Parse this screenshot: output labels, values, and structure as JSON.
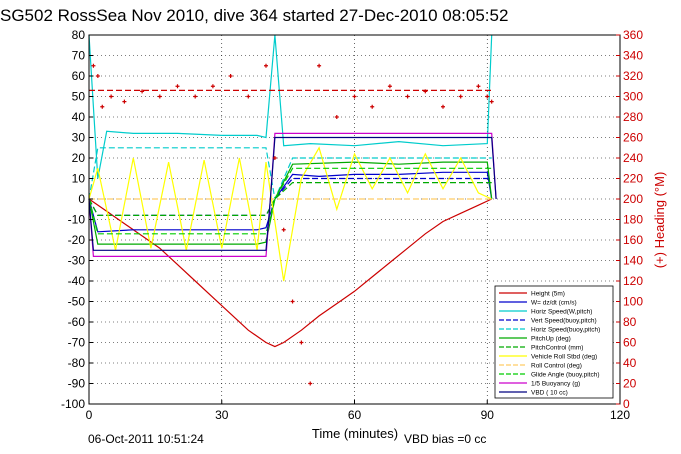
{
  "title": "SG502 RossSea Nov 2010, dive 364 started 27-Dec-2010 08:05:52",
  "footer": {
    "timestamp": "06-Oct-2011 10:51:24",
    "vbd_bias": "VBD bias =0 cc"
  },
  "chart_data": {
    "type": "line",
    "title": "SG502 RossSea Nov 2010, dive 364 started 27-Dec-2010 08:05:52",
    "xlabel": "Time (minutes)",
    "ylabel": "",
    "ylabel_right": "(+) Heading (°M)",
    "xlim": [
      0,
      120
    ],
    "ylim": [
      -100,
      80
    ],
    "ylim_right": [
      0,
      360
    ],
    "xticks": [
      0,
      30,
      60,
      90,
      120
    ],
    "yticks": [
      -100,
      -90,
      -80,
      -70,
      -60,
      -50,
      -40,
      -30,
      -20,
      -10,
      0,
      10,
      20,
      30,
      40,
      50,
      60,
      70,
      80
    ],
    "yticks_right": [
      0,
      20,
      40,
      60,
      80,
      100,
      120,
      140,
      160,
      180,
      200,
      220,
      240,
      260,
      280,
      300,
      320,
      340,
      360
    ],
    "grid": true,
    "legend_position": "bottom-right",
    "colors": {
      "accent_right_axis": "#cc0000"
    },
    "series": [
      {
        "name": "Height (5m)",
        "color": "#cc0000",
        "style": "solid",
        "x": [
          0,
          4,
          8,
          12,
          16,
          20,
          24,
          28,
          32,
          36,
          40,
          42,
          44,
          48,
          52,
          56,
          60,
          64,
          68,
          72,
          76,
          80,
          84,
          88,
          91
        ],
        "y": [
          0,
          -6,
          -12,
          -18,
          -24,
          -32,
          -40,
          -48,
          -56,
          -64,
          -70,
          -72,
          -70,
          -64,
          -57,
          -51,
          -45,
          -38,
          -31,
          -24,
          -17,
          -11,
          -7,
          -3,
          0
        ]
      },
      {
        "name": "W= dz/dt (cm/s)",
        "color": "#0000cc",
        "style": "solid",
        "x": [
          0,
          2,
          10,
          20,
          30,
          38,
          40,
          42,
          46,
          52,
          60,
          70,
          80,
          90,
          91
        ],
        "y": [
          0,
          -16,
          -15,
          -15,
          -15,
          -15,
          -14,
          0,
          12,
          11,
          12,
          12,
          13,
          13,
          0
        ]
      },
      {
        "name": "Horiz Speed(W,pitch)",
        "color": "#00cccc",
        "style": "solid",
        "x": [
          0,
          2,
          4,
          10,
          20,
          30,
          38,
          40,
          42,
          44,
          50,
          60,
          70,
          80,
          90,
          91
        ],
        "y": [
          80,
          10,
          33,
          32,
          32,
          31,
          31,
          30,
          80,
          26,
          27,
          26,
          28,
          26,
          27,
          80
        ]
      },
      {
        "name": "Vert Speed(buoy,pitch)",
        "color": "#0000cc",
        "style": "dashed",
        "x": [
          0,
          2,
          40,
          42,
          46,
          91
        ],
        "y": [
          0,
          -8,
          -8,
          0,
          10,
          10
        ]
      },
      {
        "name": "Horiz Speed(buoy,pitch)",
        "color": "#00cccc",
        "style": "dashed",
        "x": [
          0,
          2,
          40,
          42,
          46,
          91
        ],
        "y": [
          0,
          25,
          25,
          0,
          20,
          20
        ]
      },
      {
        "name": "PitchUp (deg)",
        "color": "#00aa00",
        "style": "solid",
        "x": [
          0,
          2,
          10,
          20,
          30,
          38,
          40,
          42,
          46,
          60,
          70,
          80,
          90,
          91
        ],
        "y": [
          0,
          -22,
          -22,
          -22,
          -22,
          -22,
          -21,
          0,
          17,
          18,
          17,
          18,
          18,
          0
        ]
      },
      {
        "name": "PitchControl (mm)",
        "color": "#00aa00",
        "style": "dashed",
        "x": [
          0,
          2,
          40,
          42,
          46,
          91
        ],
        "y": [
          0,
          -8,
          -8,
          0,
          8,
          8
        ]
      },
      {
        "name": "Vehicle Roll Stbd (deg)",
        "color": "#ffff00",
        "style": "solid",
        "x": [
          0,
          2,
          6,
          10,
          14,
          18,
          22,
          26,
          30,
          34,
          38,
          40,
          44,
          48,
          52,
          56,
          60,
          64,
          68,
          72,
          76,
          80,
          84,
          88,
          91
        ],
        "y": [
          0,
          15,
          -25,
          20,
          -24,
          18,
          -25,
          19,
          -24,
          20,
          -25,
          18,
          -40,
          10,
          25,
          -5,
          22,
          5,
          20,
          3,
          22,
          5,
          20,
          3,
          0
        ]
      },
      {
        "name": "Roll Control (deg)",
        "color": "#ffcc66",
        "style": "dashed",
        "x": [
          0,
          40,
          42,
          91
        ],
        "y": [
          0,
          0,
          0,
          0
        ]
      },
      {
        "name": "Glide Angle (buoy,pitch)",
        "color": "#00cc00",
        "style": "dashed",
        "x": [
          0,
          2,
          40,
          42,
          46,
          91
        ],
        "y": [
          0,
          -17,
          -17,
          0,
          15,
          15
        ]
      },
      {
        "name": "1/5 Buoyancy (g)",
        "color": "#cc00cc",
        "style": "solid",
        "x": [
          0,
          1,
          2,
          40,
          41,
          42,
          91,
          92
        ],
        "y": [
          0,
          -28,
          -28,
          -28,
          0,
          32,
          32,
          0
        ]
      },
      {
        "name": "VBD ( 10 cc)",
        "color": "#000080",
        "style": "solid",
        "x": [
          0,
          1,
          2,
          40,
          41,
          42,
          91,
          92
        ],
        "y": [
          0,
          -25,
          -25,
          -25,
          0,
          30,
          30,
          0
        ]
      },
      {
        "name": "Heading",
        "color": "#cc0000",
        "style": "markers",
        "axis": "right",
        "x": [
          1,
          2,
          3,
          5,
          8,
          12,
          16,
          20,
          24,
          28,
          32,
          36,
          40,
          42,
          44,
          46,
          48,
          50,
          52,
          56,
          60,
          64,
          68,
          72,
          76,
          80,
          84,
          88,
          90,
          91
        ],
        "y": [
          330,
          320,
          290,
          300,
          295,
          305,
          300,
          310,
          300,
          310,
          320,
          300,
          330,
          240,
          170,
          100,
          60,
          20,
          330,
          280,
          300,
          290,
          310,
          300,
          305,
          290,
          300,
          310,
          300,
          295
        ]
      },
      {
        "name": "Mean Heading",
        "color": "#cc0000",
        "style": "dashed",
        "axis": "right",
        "x": [
          0,
          91
        ],
        "y": [
          306,
          306
        ]
      }
    ]
  }
}
